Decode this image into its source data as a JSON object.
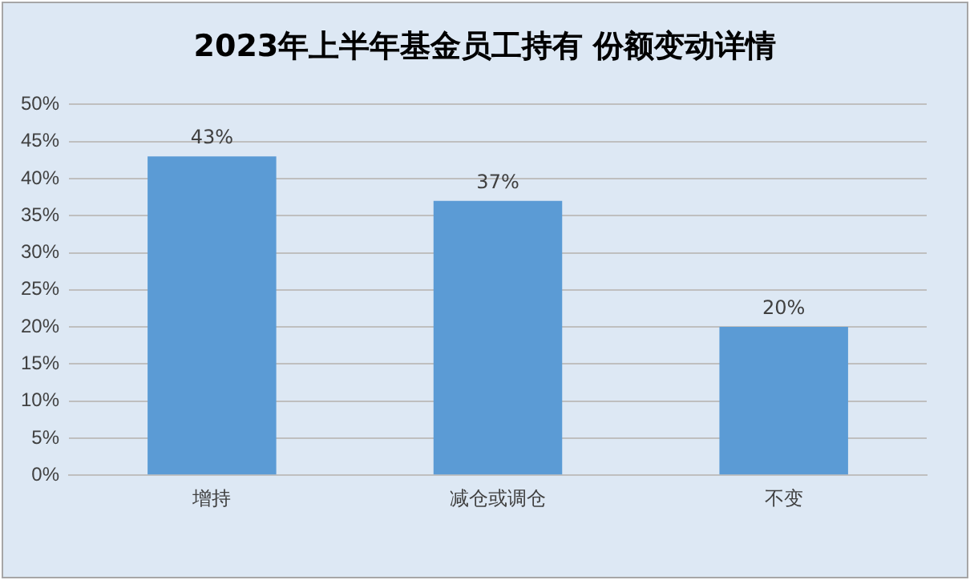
{
  "chart_data": {
    "type": "bar",
    "title": "2023年上半年基金员工持有 份额变动详情",
    "categories": [
      "增持",
      "减仓或调仓",
      "不变"
    ],
    "values": [
      43,
      37,
      20
    ],
    "color": "#5b9bd5",
    "ylim": [
      0,
      50
    ],
    "yticks": [
      {
        "value": 0,
        "label": "0%"
      },
      {
        "value": 5,
        "label": "5%"
      },
      {
        "value": 10,
        "label": "10%"
      },
      {
        "value": 15,
        "label": "15%"
      },
      {
        "value": 20,
        "label": "20%"
      },
      {
        "value": 25,
        "label": "25%"
      },
      {
        "value": 30,
        "label": "30%"
      },
      {
        "value": 35,
        "label": "35%"
      },
      {
        "value": 40,
        "label": "40%"
      },
      {
        "value": 45,
        "label": "45%"
      },
      {
        "value": 50,
        "label": "50%"
      }
    ],
    "value_labels": [
      "43%",
      "37%",
      "20%"
    ],
    "grid": "y",
    "legend": false
  }
}
